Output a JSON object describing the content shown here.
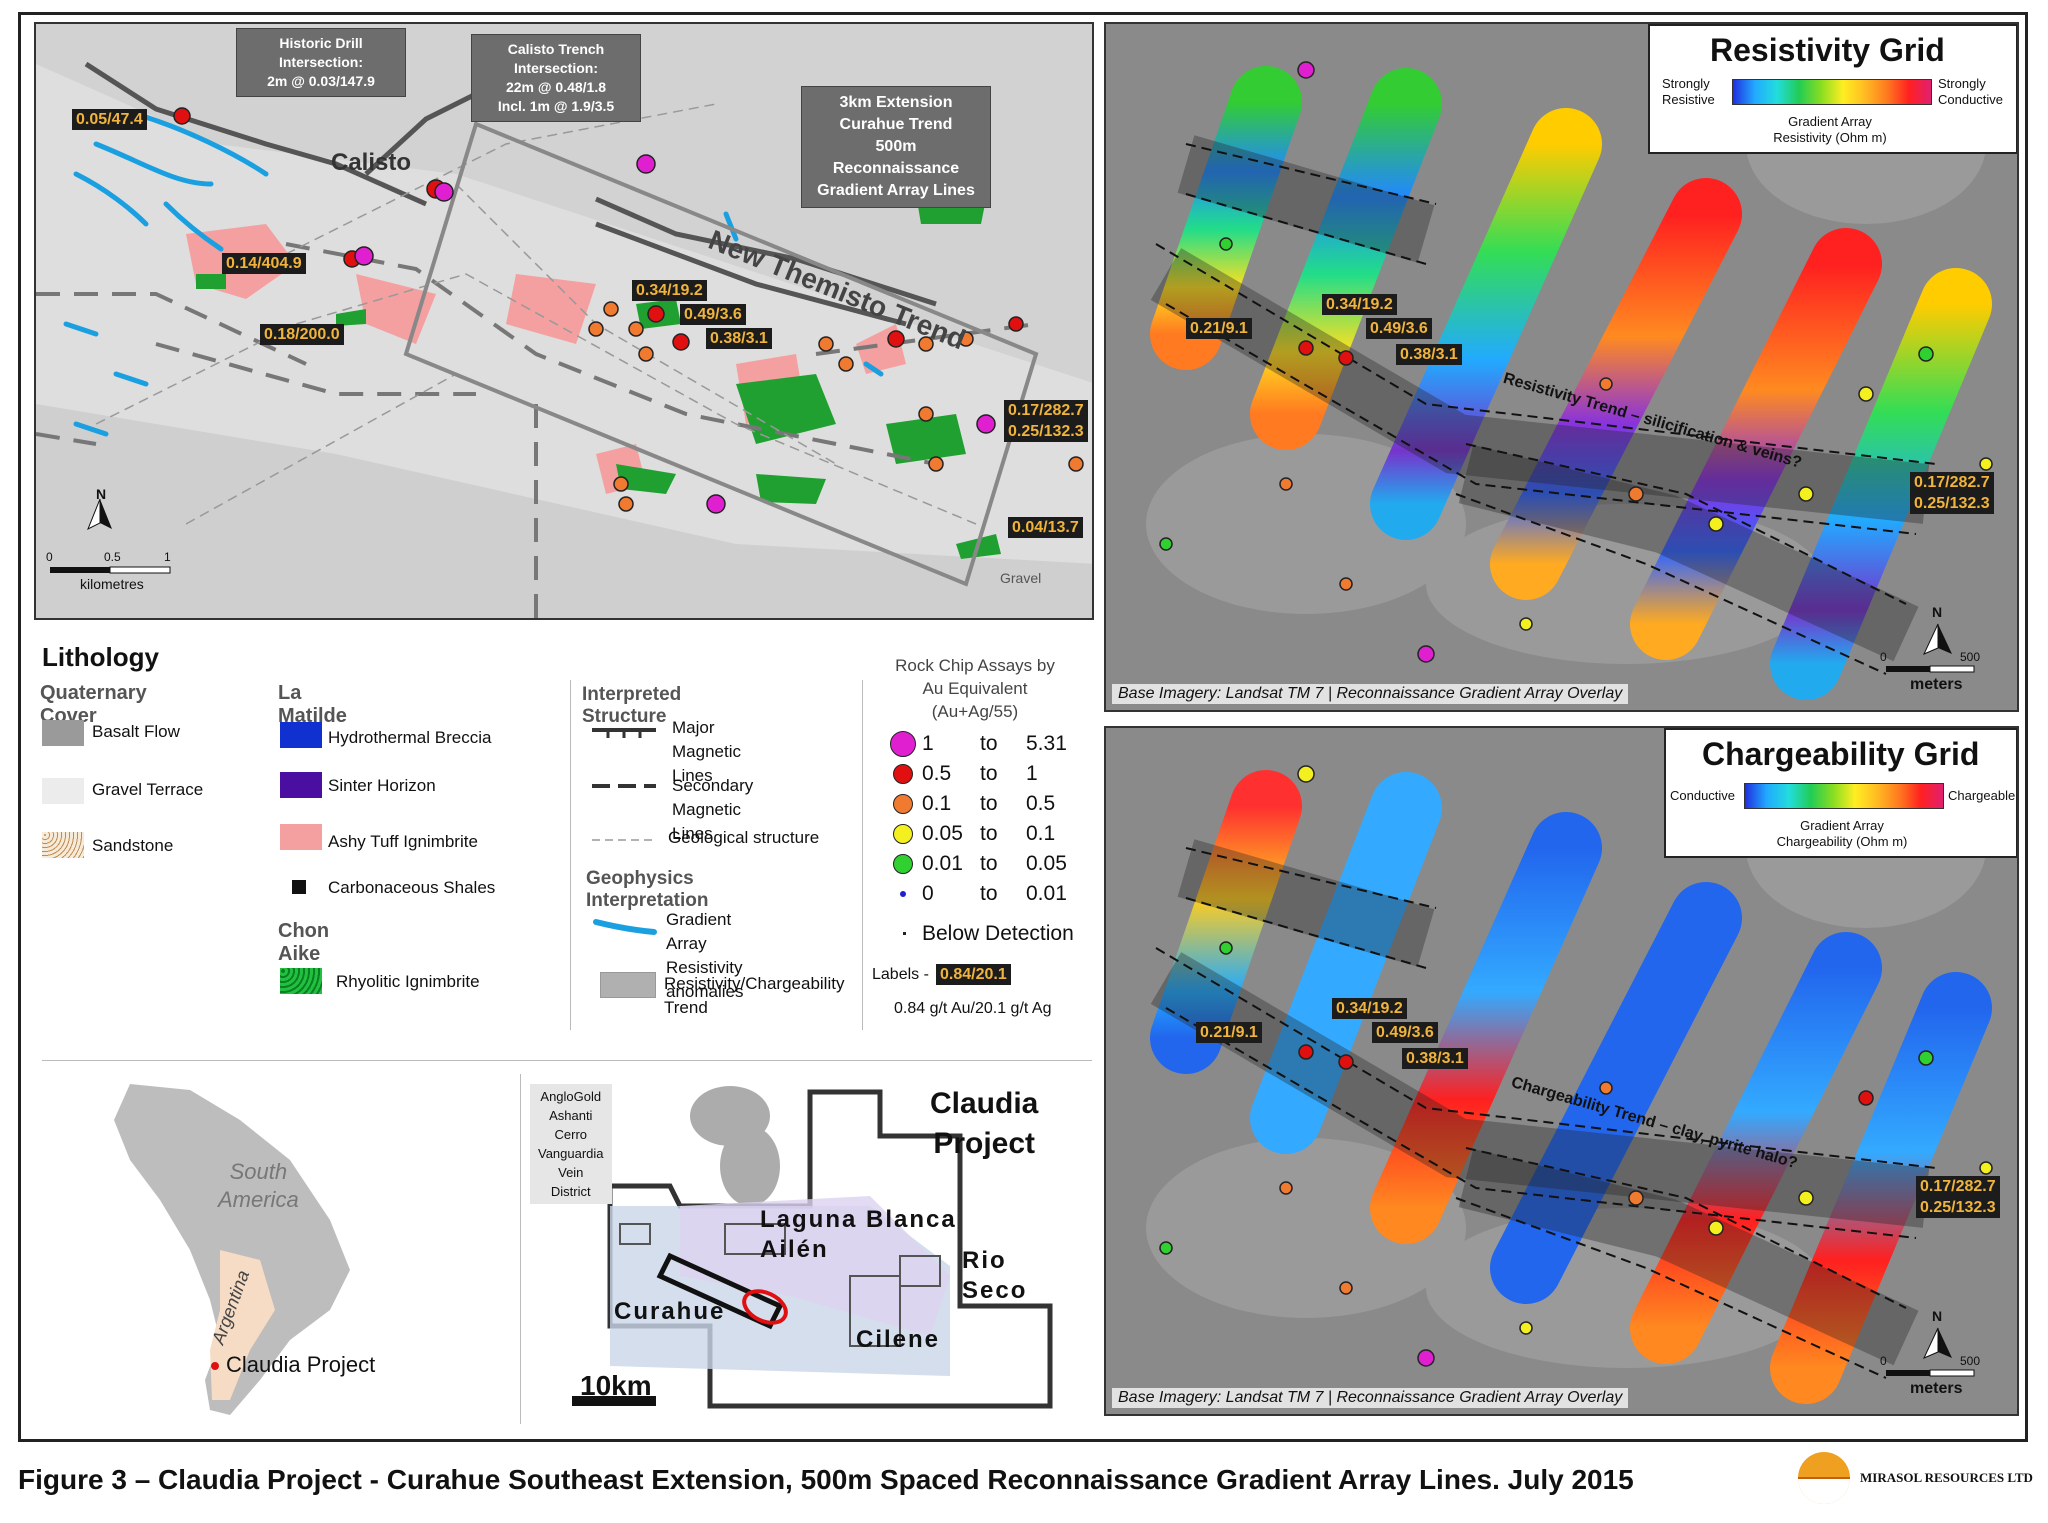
{
  "figure_caption": "Figure 3 – Claudia Project - Curahue Southeast Extension, 500m Spaced Reconnaissance Gradient Array Lines. July 2015",
  "company_logo": "MIRASOL RESOURCES LTD",
  "geology_map": {
    "callouts": {
      "historic_drill": "Historic Drill\nIntersection:\n2m @ 0.03/147.9",
      "calisto_trench": "Calisto Trench\nIntersection:\n22m @ 0.48/1.8\nIncl. 1m @ 1.9/3.5",
      "extension": "3km Extension\nCurahue Trend\n500m Reconnaissance\nGradient Array Lines"
    },
    "place_calisto": "Calisto",
    "trend_name": "New Themisto Trend",
    "gravel_label": "Gravel",
    "labels": [
      "0.05/47.4",
      "0.14/404.9",
      "0.18/200.0",
      "0.34/19.2",
      "0.49/3.6",
      "0.38/3.1",
      "0.17/282.7",
      "0.25/132.3",
      "0.04/13.7"
    ],
    "scale": {
      "ticks": [
        "0",
        "0.5",
        "1"
      ],
      "unit": "kilometres"
    }
  },
  "resistivity": {
    "title": "Resistivity Grid",
    "left_end": "Strongly\nResistive",
    "right_end": "Strongly\nConductive",
    "subtitle": "Gradient Array\nResistivity (Ohm m)",
    "trend_label": "Resistivity Trend – silicification & veins?",
    "labels": [
      "0.21/9.1",
      "0.34/19.2",
      "0.49/3.6",
      "0.38/3.1",
      "0.17/282.7",
      "0.25/132.3"
    ],
    "credit": "Base Imagery: Landsat TM 7 | Reconnaissance Gradient Array Overlay",
    "scale": {
      "ticks": [
        "0",
        "500"
      ],
      "unit": "meters"
    }
  },
  "chargeability": {
    "title": "Chargeability Grid",
    "left_end": "Conductive",
    "right_end": "Chargeable",
    "subtitle": "Gradient Array\nChargeability (Ohm m)",
    "trend_label": "Chargeability Trend – clay, pyrite halo?",
    "labels": [
      "0.21/9.1",
      "0.34/19.2",
      "0.49/3.6",
      "0.38/3.1",
      "0.17/282.7",
      "0.25/132.3"
    ],
    "credit": "Base Imagery: Landsat TM 7 | Reconnaissance Gradient Array Overlay",
    "scale": {
      "ticks": [
        "0",
        "500"
      ],
      "unit": "meters"
    }
  },
  "legend": {
    "lithology_title": "Lithology",
    "quaternary_title": "Quaternary Cover",
    "quaternary": [
      "Basalt Flow",
      "Gravel Terrace",
      "Sandstone"
    ],
    "matilde_title": "La Matilde",
    "matilde": [
      "Hydrothermal Breccia",
      "Sinter Horizon",
      "Ashy Tuff Ignimbrite",
      "Carbonaceous Shales"
    ],
    "chon_title": "Chon Aike",
    "chon": [
      "Rhyolitic Ignimbrite"
    ],
    "structure_title": "Interpreted Structure",
    "structure": [
      "Major\nMagnetic Lines",
      "Secondary\nMagnetic Lines",
      "Geological structure"
    ],
    "geophysics_title": "Geophysics Interpretation",
    "geophysics": [
      "Gradient Array\nResistivity anomalies",
      "Resistivity/Chargeability\nTrend"
    ],
    "assays_title": "Rock Chip Assays by\nAu Equivalent\n(Au+Ag/55)",
    "assays": [
      {
        "from": "1",
        "to": "to",
        "upper": "5.31",
        "color": "#e020d0"
      },
      {
        "from": "0.5",
        "to": "to",
        "upper": "1",
        "color": "#e01010"
      },
      {
        "from": "0.1",
        "to": "to",
        "upper": "0.5",
        "color": "#f07a30"
      },
      {
        "from": "0.05",
        "to": "to",
        "upper": "0.1",
        "color": "#f4f020"
      },
      {
        "from": "0.01",
        "to": "to",
        "upper": "0.05",
        "color": "#30d030"
      },
      {
        "from": "0",
        "to": "to",
        "upper": "0.01",
        "color": "#2020d0"
      }
    ],
    "below_detection": "Below Detection",
    "labels_prefix": "Labels -",
    "labels_example": "0.84/20.1",
    "labels_explain": "0.84 g/t Au/20.1 g/t Ag"
  },
  "inset_sa": {
    "continent": "South\nAmerica",
    "country": "Argentina",
    "project": "Claudia Project"
  },
  "inset_project": {
    "district": "AngloGold Ashanti\nCerro Vanguardia\nVein District",
    "project_title": "Claudia\nProject",
    "areas": [
      "Laguna Blanca",
      "Ailén",
      "Rio\nSeco",
      "Curahue",
      "Cilene"
    ],
    "scale": "10km"
  }
}
